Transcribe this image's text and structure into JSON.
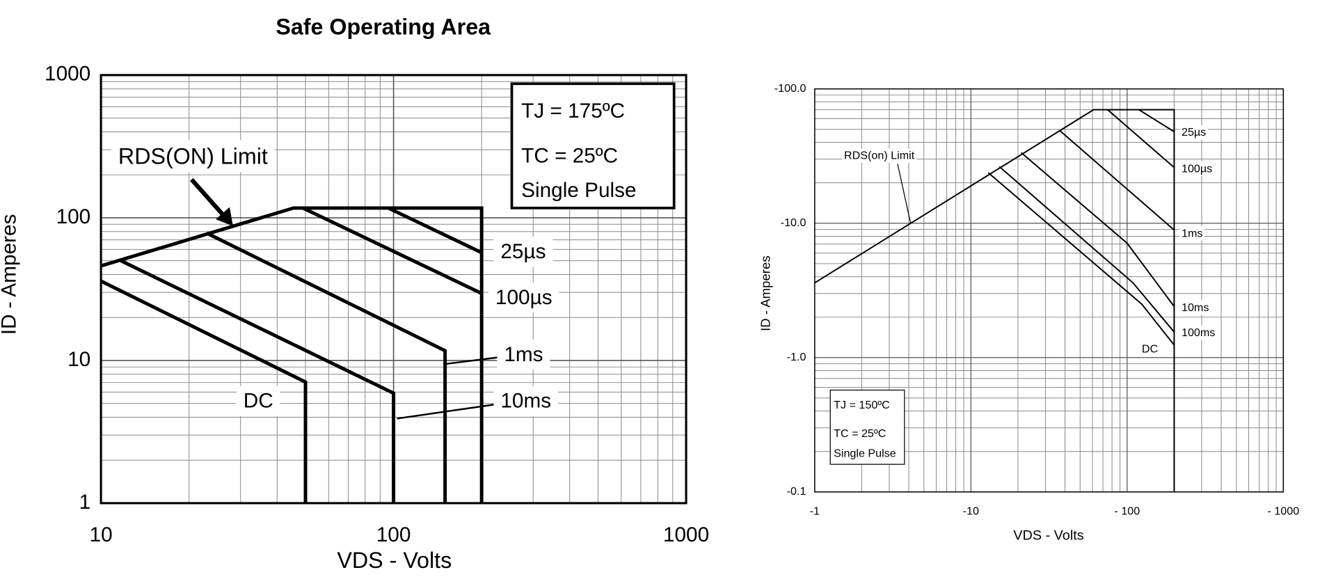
{
  "chart_data": [
    {
      "type": "line",
      "title": "Safe Operating Area",
      "x_label": "VDS - Volts",
      "y_label": "ID - Amperes",
      "log_scale": true,
      "grid": true,
      "xlim": [
        10,
        1000
      ],
      "ylim": [
        1,
        1000
      ],
      "xticks": [
        10,
        100,
        1000
      ],
      "yticks": [
        1,
        10,
        100,
        1000
      ],
      "series": [
        {
          "name": "RDS(ON) Limit",
          "color": "#000000",
          "x": [
            10,
            45.5,
            200,
            200
          ],
          "values": [
            46,
            117,
            117,
            1
          ]
        },
        {
          "name": "25µs",
          "color": "#000000",
          "x": [
            96,
            200
          ],
          "values": [
            117,
            57
          ]
        },
        {
          "name": "100µs",
          "color": "#000000",
          "x": [
            49,
            200
          ],
          "values": [
            117,
            29.5
          ]
        },
        {
          "name": "1ms",
          "color": "#000000",
          "x": [
            23,
            150,
            150
          ],
          "values": [
            78,
            11.7,
            1
          ]
        },
        {
          "name": "10ms",
          "color": "#000000",
          "x": [
            11.7,
            100,
            100
          ],
          "values": [
            50,
            5.9,
            1
          ]
        },
        {
          "name": "DC",
          "color": "#000000",
          "x": [
            10,
            50,
            50
          ],
          "values": [
            36,
            7.06,
            1
          ]
        }
      ],
      "annotations": [
        "TJ = 175ºC",
        "TC = 25ºC",
        "Single Pulse"
      ]
    },
    {
      "type": "line",
      "x_label": "VDS - Volts",
      "y_label": "ID - Amperes",
      "log_scale": true,
      "grid": true,
      "xlim": [
        -1,
        -1000
      ],
      "ylim": [
        -0.1,
        -100
      ],
      "xticks": [
        -1,
        -10,
        {
          "value": -100,
          "label": "- 100"
        },
        {
          "value": -1000,
          "label": "- 1000"
        }
      ],
      "yticks": [
        -0.1,
        {
          "value": -1,
          "label": "-1.0"
        },
        {
          "value": -10,
          "label": "-10.0"
        },
        {
          "value": -100,
          "label": "-100.0"
        }
      ],
      "series": [
        {
          "name": "RDS(on) Limit",
          "color": "#000000",
          "x": [
            -1,
            -61,
            -200,
            -200
          ],
          "values": [
            -3.6,
            -70,
            -70,
            -0.1
          ]
        },
        {
          "name": "25µs",
          "color": "#000000",
          "x": [
            -119,
            -200
          ],
          "values": [
            -70,
            -48
          ]
        },
        {
          "name": "100µs",
          "color": "#000000",
          "x": [
            -75,
            -200
          ],
          "values": [
            -70,
            -26
          ]
        },
        {
          "name": "1ms",
          "color": "#000000",
          "x": [
            -37,
            -200
          ],
          "values": [
            -49,
            -8.9
          ]
        },
        {
          "name": "10ms",
          "color": "#000000",
          "x": [
            -21,
            -100,
            -200
          ],
          "values": [
            -33.5,
            -7.1,
            -2.4
          ]
        },
        {
          "name": "100ms",
          "color": "#000000",
          "x": [
            -15.2,
            -109,
            -200
          ],
          "values": [
            -26.4,
            -3.6,
            -1.55
          ]
        },
        {
          "name": "DC",
          "color": "#000000",
          "x": [
            -12.9,
            -124,
            -200
          ],
          "values": [
            -23.8,
            -2.5,
            -1.24
          ]
        }
      ],
      "annotations": [
        "TJ = 150ºC",
        "TC = 25ºC",
        "Single Pulse"
      ]
    }
  ]
}
